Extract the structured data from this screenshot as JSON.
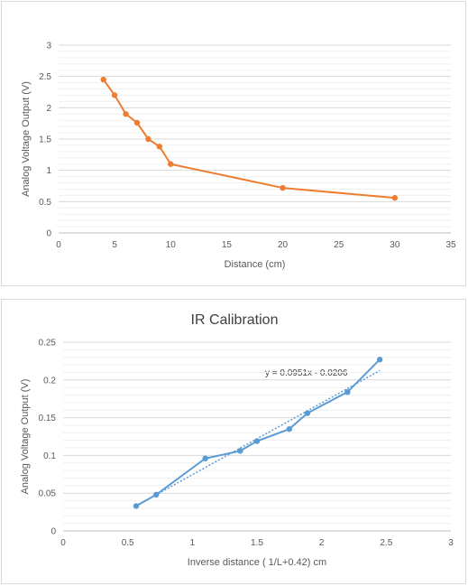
{
  "chart_data": [
    {
      "type": "line",
      "title": "",
      "xlabel": "Distance (cm)",
      "ylabel": "Analog Voltage Output (V)",
      "xlim": [
        0,
        35
      ],
      "ylim": [
        0,
        3
      ],
      "x_ticks": [
        "0",
        "5",
        "10",
        "15",
        "20",
        "25",
        "30",
        "35"
      ],
      "y_ticks": [
        "0",
        "0.5",
        "1",
        "1.5",
        "2",
        "2.5",
        "3"
      ],
      "grid": true,
      "color": "#ED7D31",
      "series": [
        {
          "points": [
            [
              4,
              2.45
            ],
            [
              5,
              2.2
            ],
            [
              6,
              1.9
            ],
            [
              7,
              1.76
            ],
            [
              8,
              1.5
            ],
            [
              9,
              1.38
            ],
            [
              10,
              1.1
            ],
            [
              20,
              0.72
            ],
            [
              30,
              0.56
            ]
          ]
        }
      ]
    },
    {
      "type": "line",
      "title": "IR Calibration",
      "xlabel": "Inverse distance ( 1/L+0.42) cm",
      "ylabel": "Analog Voltage Output (V)",
      "xlim": [
        0,
        3
      ],
      "ylim": [
        0,
        0.25
      ],
      "x_ticks": [
        "0",
        "0.5",
        "1",
        "1.5",
        "2",
        "2.5",
        "3"
      ],
      "y_ticks": [
        "0",
        "0.05",
        "0.1",
        "0.15",
        "0.2",
        "0.25"
      ],
      "grid": true,
      "color": "#5B9BD5",
      "series": [
        {
          "points": [
            [
              0.565,
              0.033
            ],
            [
              0.72,
              0.048
            ],
            [
              1.1,
              0.096
            ],
            [
              1.37,
              0.106
            ],
            [
              1.5,
              0.119
            ],
            [
              1.75,
              0.135
            ],
            [
              1.89,
              0.156
            ],
            [
              2.2,
              0.184
            ],
            [
              2.45,
              0.227
            ]
          ]
        }
      ],
      "trendline": {
        "style": "dotted",
        "slope": 0.0951,
        "intercept": -0.0206,
        "x_range": [
          0.565,
          2.45
        ],
        "equation_label": "y = 0.0951x - 0.0206"
      }
    }
  ]
}
